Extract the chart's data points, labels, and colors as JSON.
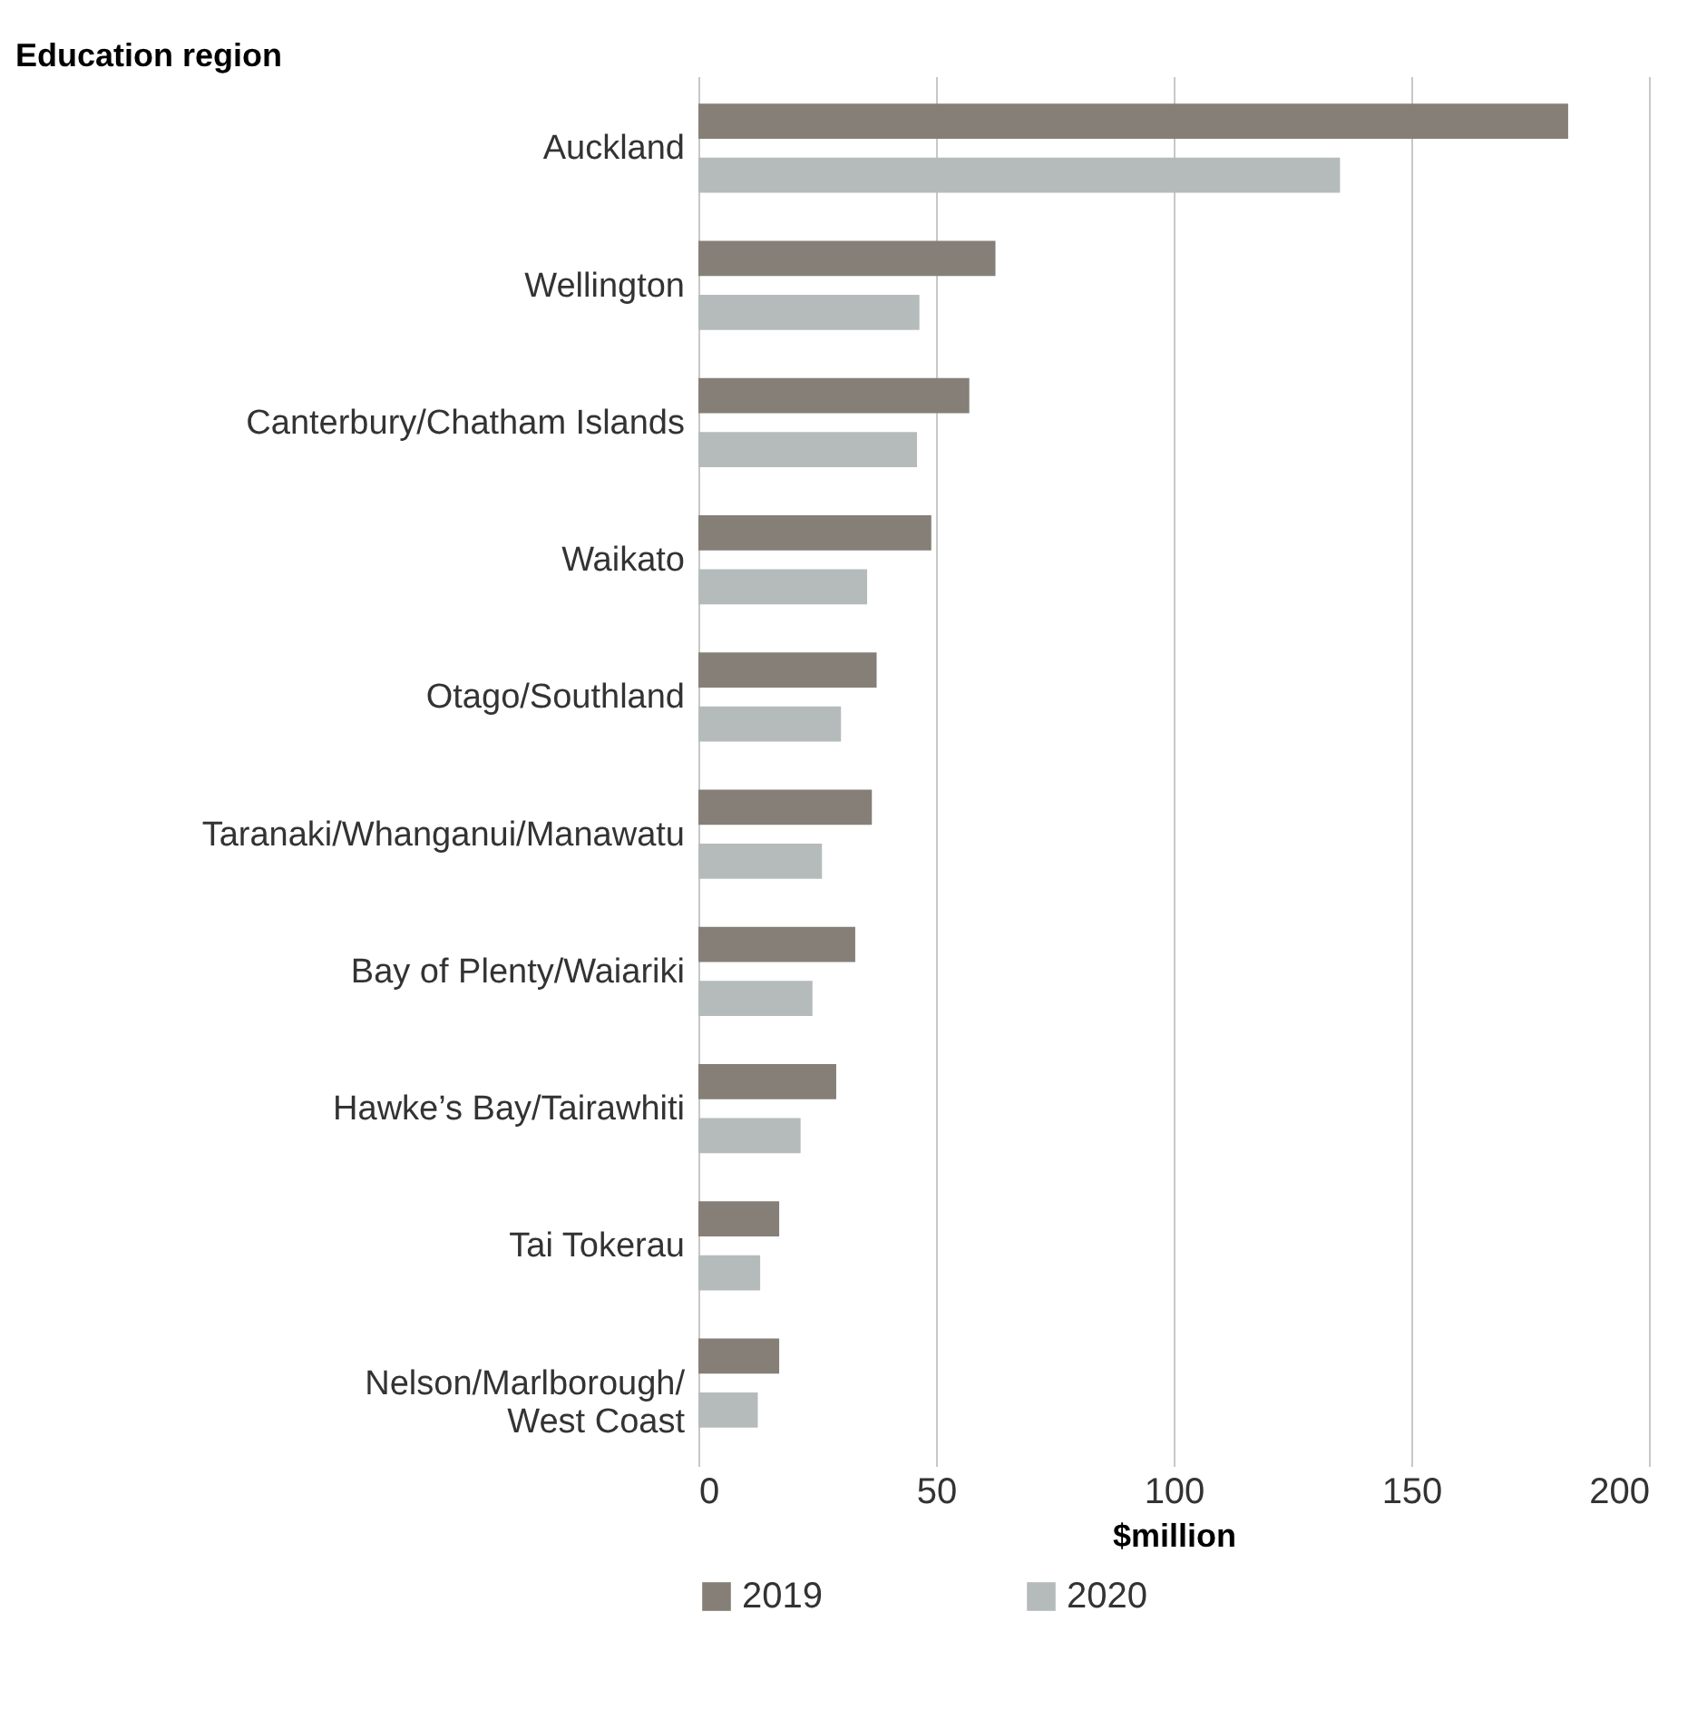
{
  "chart_data": {
    "type": "bar",
    "orientation": "horizontal",
    "ylabel": "Education region",
    "xlabel": "$million",
    "categories": [
      "Auckland",
      "Wellington",
      "Canterbury/Chatham Islands",
      "Waikato",
      "Otago/Southland",
      "Taranaki/Whanganui/Manawatu",
      "Bay of Plenty/Waiariki",
      "Hawke’s Bay/Tairawhiti",
      "Tai Tokerau",
      "Nelson/Marlborough/ West Coast"
    ],
    "series": [
      {
        "name": "2019",
        "color": "#857f77",
        "values": [
          183,
          62.5,
          57,
          49,
          37.5,
          36.5,
          33,
          29,
          17,
          17
        ]
      },
      {
        "name": "2020",
        "color": "#b5bbbb",
        "values": [
          135,
          46.5,
          46,
          35.5,
          30,
          26,
          24,
          21.5,
          13,
          12.5
        ]
      }
    ],
    "xlim": [
      0,
      200
    ],
    "xticks": [
      0,
      50,
      100,
      150,
      200
    ],
    "grid": "x",
    "legend": "bottom"
  }
}
